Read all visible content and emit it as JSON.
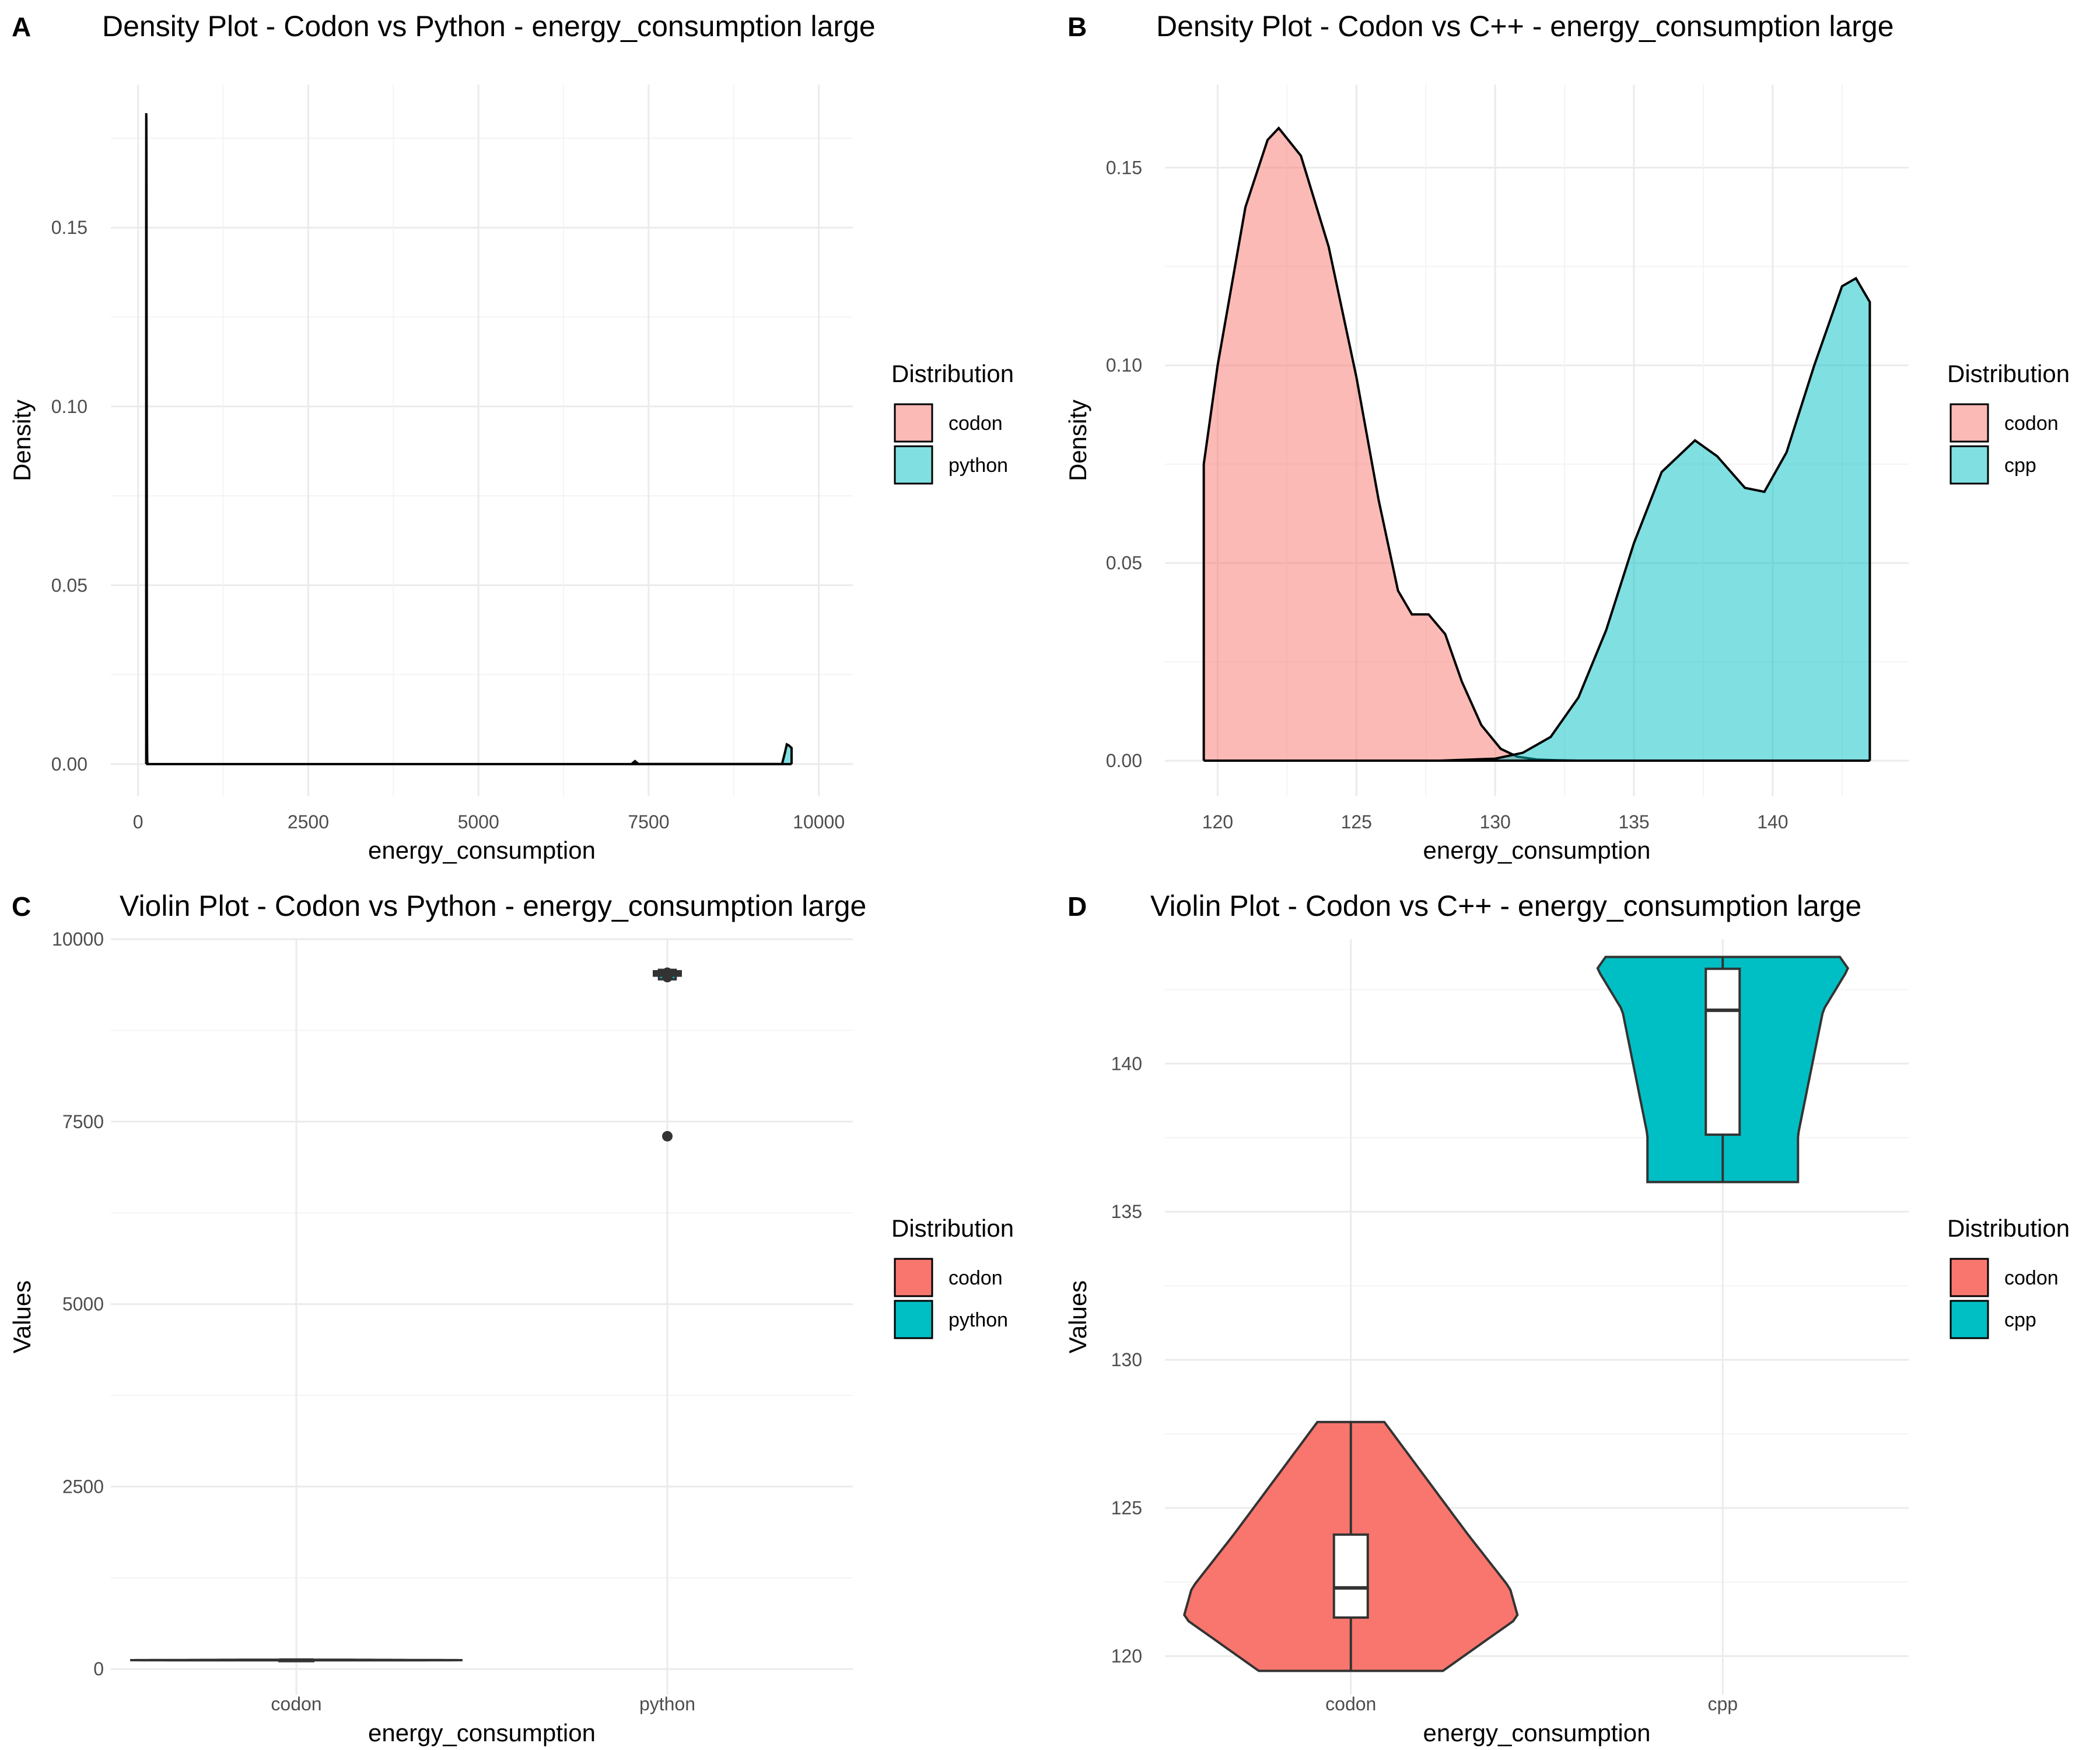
{
  "chart_data": [
    {
      "panel": "A",
      "type": "area",
      "title": "Density Plot - Codon vs Python - energy_consumption large",
      "xlabel": "energy_consumption",
      "ylabel": "Density",
      "xlim": [
        -400,
        10500
      ],
      "ylim": [
        -0.009,
        0.19
      ],
      "xticks": [
        0,
        2500,
        5000,
        7500,
        10000
      ],
      "xtick_labels": [
        "0",
        "2500",
        "5000",
        "7500",
        "10000"
      ],
      "yticks": [
        0,
        0.05,
        0.1,
        0.15
      ],
      "ytick_labels": [
        "0.00",
        "0.05",
        "0.10",
        "0.15"
      ],
      "grid": true,
      "legend": {
        "title": "Distribution",
        "position": "right",
        "labels": [
          "codon",
          "python"
        ]
      },
      "series": [
        {
          "name": "codon",
          "color": "#F8766D",
          "x": [
            119.5,
            120,
            122,
            124,
            126,
            128,
            130,
            132,
            134,
            136,
            138,
            140,
            142,
            143.5
          ],
          "y": [
            0.16,
            0.182,
            0.18,
            0.17,
            0.12,
            0.07,
            0.03,
            0.01,
            0.003,
            0.001,
            0.0,
            0.0,
            0.0,
            0.0
          ]
        },
        {
          "name": "python",
          "color": "#00BFC4",
          "x": [
            7250,
            7300,
            7350,
            9460,
            9500,
            9530,
            9560,
            9600
          ],
          "y": [
            0.0,
            0.0008,
            0.0,
            0.0,
            0.003,
            0.0055,
            0.0052,
            0.0045
          ]
        }
      ]
    },
    {
      "panel": "B",
      "type": "area",
      "title": "Density Plot - Codon vs C++ - energy_consumption large",
      "xlabel": "energy_consumption",
      "ylabel": "Density",
      "xlim": [
        118.1,
        144.9
      ],
      "ylim": [
        -0.009,
        0.171
      ],
      "xticks": [
        120,
        125,
        130,
        135,
        140
      ],
      "xtick_labels": [
        "120",
        "125",
        "130",
        "135",
        "140"
      ],
      "yticks": [
        0,
        0.05,
        0.1,
        0.15
      ],
      "ytick_labels": [
        "0.00",
        "0.05",
        "0.10",
        "0.15"
      ],
      "grid": true,
      "legend": {
        "title": "Distribution",
        "position": "right",
        "labels": [
          "codon",
          "cpp"
        ]
      },
      "series": [
        {
          "name": "codon",
          "color": "#F8766D",
          "x": [
            119.5,
            120,
            121,
            121.8,
            122.2,
            123,
            124,
            125,
            125.8,
            126.5,
            127,
            127.6,
            128.2,
            128.8,
            129.5,
            130.2,
            130.8,
            131.5,
            132.2,
            133,
            135,
            137,
            140,
            143.5
          ],
          "y": [
            0.075,
            0.1,
            0.14,
            0.157,
            0.16,
            0.153,
            0.13,
            0.097,
            0.066,
            0.043,
            0.037,
            0.037,
            0.032,
            0.02,
            0.009,
            0.003,
            0.001,
            0.0003,
            0.0001,
            0.0,
            0.0,
            0.0,
            0.0,
            0.0
          ]
        },
        {
          "name": "cpp",
          "color": "#00BFC4",
          "x": [
            119.5,
            128,
            130,
            131,
            132,
            133,
            134,
            135,
            136,
            137.2,
            138,
            139,
            139.7,
            140.5,
            141.5,
            142.5,
            143,
            143.5
          ],
          "y": [
            0.0,
            0.0,
            0.0005,
            0.002,
            0.006,
            0.016,
            0.033,
            0.055,
            0.073,
            0.081,
            0.077,
            0.069,
            0.068,
            0.078,
            0.1,
            0.12,
            0.122,
            0.116
          ]
        }
      ]
    },
    {
      "panel": "C",
      "type": "violin",
      "title": "Violin Plot - Codon vs Python - energy_consumption large",
      "xlabel": "energy_consumption",
      "ylabel": "Values",
      "categories": [
        "codon",
        "python"
      ],
      "ylim": [
        -350,
        10000
      ],
      "yticks": [
        0,
        2500,
        5000,
        7500,
        10000
      ],
      "ytick_labels": [
        "0",
        "2500",
        "5000",
        "7500",
        "10000"
      ],
      "grid": true,
      "legend": {
        "title": "Distribution",
        "position": "right",
        "labels": [
          "codon",
          "python"
        ]
      },
      "series": [
        {
          "name": "codon",
          "color": "#F8766D",
          "min": 119.5,
          "q1": 121.3,
          "median": 122.3,
          "q3": 124.1,
          "max": 127.9,
          "outliers": []
        },
        {
          "name": "python",
          "color": "#00BFC4",
          "min": 9450,
          "q1": 9500,
          "median": 9530,
          "q3": 9560,
          "max": 9580,
          "outliers": [
            7300,
            9480,
            9540
          ]
        }
      ]
    },
    {
      "panel": "D",
      "type": "violin",
      "title": "Violin Plot - Codon vs C++ - energy_consumption large",
      "xlabel": "energy_consumption",
      "ylabel": "Values",
      "categories": [
        "codon",
        "cpp"
      ],
      "ylim": [
        118.7,
        144.2
      ],
      "yticks": [
        120,
        125,
        130,
        135,
        140
      ],
      "ytick_labels": [
        "120",
        "125",
        "130",
        "135",
        "140"
      ],
      "grid": true,
      "legend": {
        "title": "Distribution",
        "position": "right",
        "labels": [
          "codon",
          "cpp"
        ]
      },
      "series": [
        {
          "name": "codon",
          "color": "#F8766D",
          "min": 119.5,
          "q1": 121.3,
          "median": 122.3,
          "q3": 124.1,
          "max": 127.9,
          "outliers": []
        },
        {
          "name": "cpp",
          "color": "#00BFC4",
          "min": 136.0,
          "q1": 137.6,
          "median": 141.8,
          "q3": 143.2,
          "max": 143.6,
          "outliers": []
        }
      ]
    }
  ]
}
